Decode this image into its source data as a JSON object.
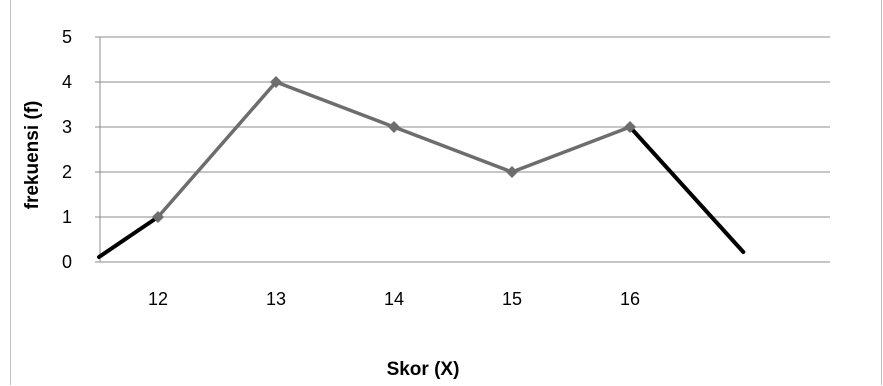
{
  "chart_data": {
    "type": "line",
    "categories": [
      "12",
      "13",
      "14",
      "15",
      "16"
    ],
    "series": [
      {
        "values": [
          1,
          4,
          3,
          2,
          3
        ],
        "color": "#6d6d6d"
      }
    ],
    "extension_lines": {
      "color": "#000000",
      "left_to": 0,
      "right_to": 0
    },
    "xlabel": "Skor (X)",
    "ylabel": "frekuensi (f)",
    "ylim": [
      0,
      5
    ],
    "yticks": [
      0,
      1,
      2,
      3,
      4,
      5
    ],
    "grid": true,
    "legend": "none",
    "marker": "diamond"
  }
}
